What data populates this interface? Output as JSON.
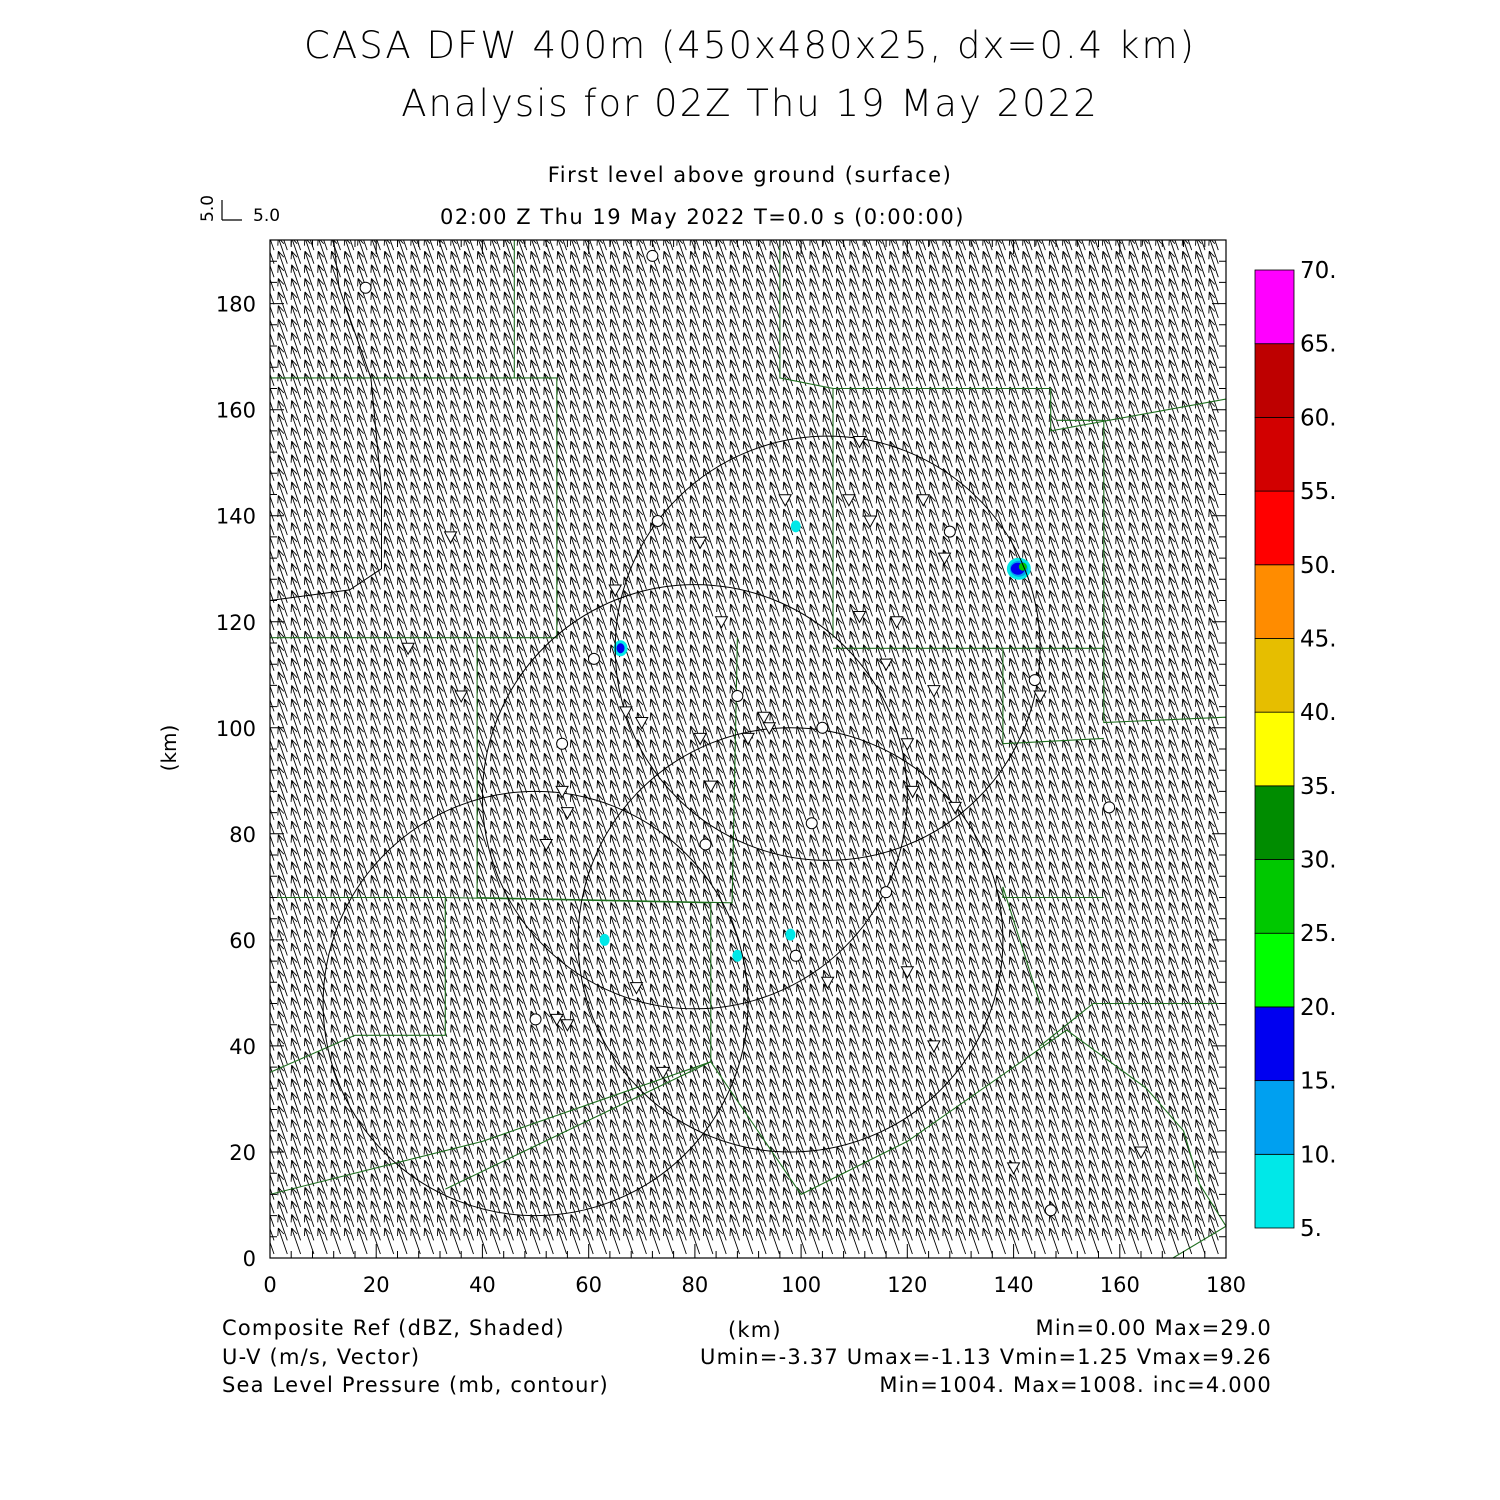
{
  "title": {
    "line1": "CASA DFW 400m (450x480x25, dx=0.4 km)",
    "line2": "Analysis for 02Z Thu 19 May 2022"
  },
  "subtitle": {
    "level": "First level above ground (surface)",
    "time": "02:00 Z Thu 19 May 2022   T=0.0 s (0:00:00)"
  },
  "vector_key": {
    "u_label": "5.0",
    "v_label": "5.0"
  },
  "axes": {
    "x_label": "(km)",
    "y_label": "(km)",
    "x_range": [
      0,
      180
    ],
    "y_range": [
      0,
      192
    ],
    "x_ticks": [
      0,
      20,
      40,
      60,
      80,
      100,
      120,
      140,
      160,
      180
    ],
    "y_ticks": [
      0,
      20,
      40,
      60,
      80,
      100,
      120,
      140,
      160,
      180
    ]
  },
  "colorbar": {
    "labels": [
      "5.",
      "10.",
      "15.",
      "20.",
      "25.",
      "30.",
      "35.",
      "40.",
      "45.",
      "50.",
      "55.",
      "60.",
      "65.",
      "70."
    ],
    "colors": [
      "#00e8e8",
      "#00a0f0",
      "#0000f0",
      "#00ff00",
      "#00c800",
      "#008c00",
      "#ffff00",
      "#e6be00",
      "#ff8c00",
      "#ff0000",
      "#d20000",
      "#be0000",
      "#ff00ff"
    ]
  },
  "footer": {
    "field1": "Composite Ref (dBZ, Shaded)",
    "field1_stats": "Min=0.00 Max=29.0",
    "x_unit": "(km)",
    "field2": "U-V (m/s, Vector)",
    "field2_stats": "Umin=-3.37 Umax=-1.13 Vmin=1.25 Vmax=9.26",
    "field3": "Sea Level Pressure (mb, contour)",
    "field3_stats": "Min=1004. Max=1008. inc=4.000"
  },
  "map_data": {
    "radar_rings": [
      {
        "cx": 105,
        "cy": 115,
        "r": 40
      },
      {
        "cx": 80,
        "cy": 87,
        "r": 40
      },
      {
        "cx": 98,
        "cy": 60,
        "r": 40
      },
      {
        "cx": 50,
        "cy": 48,
        "r": 40
      }
    ],
    "stations_circle": [
      [
        72,
        189
      ],
      [
        18,
        183
      ],
      [
        73,
        139
      ],
      [
        128,
        137
      ],
      [
        61,
        113
      ],
      [
        55,
        97
      ],
      [
        88,
        106
      ],
      [
        104,
        100
      ],
      [
        144,
        109
      ],
      [
        102,
        82
      ],
      [
        82,
        78
      ],
      [
        116,
        69
      ],
      [
        99,
        57
      ],
      [
        50,
        45
      ],
      [
        158,
        85
      ],
      [
        147,
        9
      ]
    ],
    "stations_triangle": [
      [
        111,
        154
      ],
      [
        97,
        143
      ],
      [
        109,
        143
      ],
      [
        123,
        143
      ],
      [
        34,
        136
      ],
      [
        113,
        139
      ],
      [
        81,
        135
      ],
      [
        127,
        132
      ],
      [
        65,
        126
      ],
      [
        85,
        120
      ],
      [
        111,
        121
      ],
      [
        118,
        120
      ],
      [
        26,
        115
      ],
      [
        116,
        112
      ],
      [
        125,
        107
      ],
      [
        145,
        106
      ],
      [
        36,
        106
      ],
      [
        67,
        103
      ],
      [
        70,
        101
      ],
      [
        93,
        102
      ],
      [
        90,
        98
      ],
      [
        94,
        100
      ],
      [
        81,
        98
      ],
      [
        120,
        97
      ],
      [
        55,
        88
      ],
      [
        56,
        84
      ],
      [
        83,
        89
      ],
      [
        121,
        88
      ],
      [
        129,
        85
      ],
      [
        52,
        78
      ],
      [
        120,
        54
      ],
      [
        105,
        52
      ],
      [
        69,
        51
      ],
      [
        54,
        45
      ],
      [
        56,
        44
      ],
      [
        125,
        40
      ],
      [
        74,
        35
      ],
      [
        164,
        20
      ],
      [
        140,
        17
      ]
    ],
    "reflectivity_cells": [
      {
        "x": 141,
        "y": 130,
        "dbz": 29
      },
      {
        "x": 66,
        "y": 115,
        "dbz": 17
      },
      {
        "x": 99,
        "y": 138,
        "dbz": 8
      },
      {
        "x": 63,
        "y": 60,
        "dbz": 7
      },
      {
        "x": 88,
        "y": 57,
        "dbz": 7
      },
      {
        "x": 98,
        "y": 61,
        "dbz": 6
      }
    ],
    "county_lines": [
      [
        [
          0,
          166
        ],
        [
          54,
          166
        ],
        [
          54,
          117
        ],
        [
          0,
          117
        ]
      ],
      [
        [
          46,
          192
        ],
        [
          46,
          166
        ]
      ],
      [
        [
          96,
          192
        ],
        [
          96,
          166
        ],
        [
          106,
          164
        ],
        [
          106,
          117
        ]
      ],
      [
        [
          106,
          164
        ],
        [
          147,
          164
        ],
        [
          147,
          156
        ],
        [
          180,
          162
        ]
      ],
      [
        [
          106,
          115
        ],
        [
          157,
          115
        ],
        [
          157,
          101
        ],
        [
          180,
          102
        ],
        [
          180,
          48
        ],
        [
          155,
          48
        ],
        [
          145,
          40
        ]
      ],
      [
        [
          138,
          115
        ],
        [
          138,
          97
        ],
        [
          157,
          98
        ]
      ],
      [
        [
          148,
          158
        ],
        [
          157,
          158
        ],
        [
          157,
          115
        ]
      ],
      [
        [
          0,
          68
        ],
        [
          33,
          68
        ],
        [
          33,
          42
        ],
        [
          16,
          42
        ],
        [
          0,
          35
        ]
      ],
      [
        [
          39,
          117
        ],
        [
          39,
          68
        ],
        [
          87,
          67
        ],
        [
          88,
          117
        ]
      ],
      [
        [
          33,
          68
        ],
        [
          83,
          67
        ],
        [
          83,
          37
        ],
        [
          33,
          13
        ]
      ],
      [
        [
          83,
          37
        ],
        [
          100,
          12
        ],
        [
          120,
          22
        ],
        [
          150,
          43
        ],
        [
          165,
          32
        ],
        [
          172,
          24
        ],
        [
          175,
          14
        ],
        [
          180,
          6
        ],
        [
          170,
          0
        ]
      ],
      [
        [
          157,
          68
        ],
        [
          138,
          68
        ],
        [
          138,
          70
        ],
        [
          145,
          48
        ]
      ],
      [
        [
          83,
          37
        ],
        [
          40,
          22
        ],
        [
          0,
          12
        ]
      ]
    ],
    "pressure_contour": [
      [
        0,
        124
      ],
      [
        15,
        126
      ],
      [
        21,
        130
      ],
      [
        21,
        145
      ],
      [
        19,
        166
      ],
      [
        13,
        183
      ],
      [
        12,
        192
      ]
    ]
  }
}
